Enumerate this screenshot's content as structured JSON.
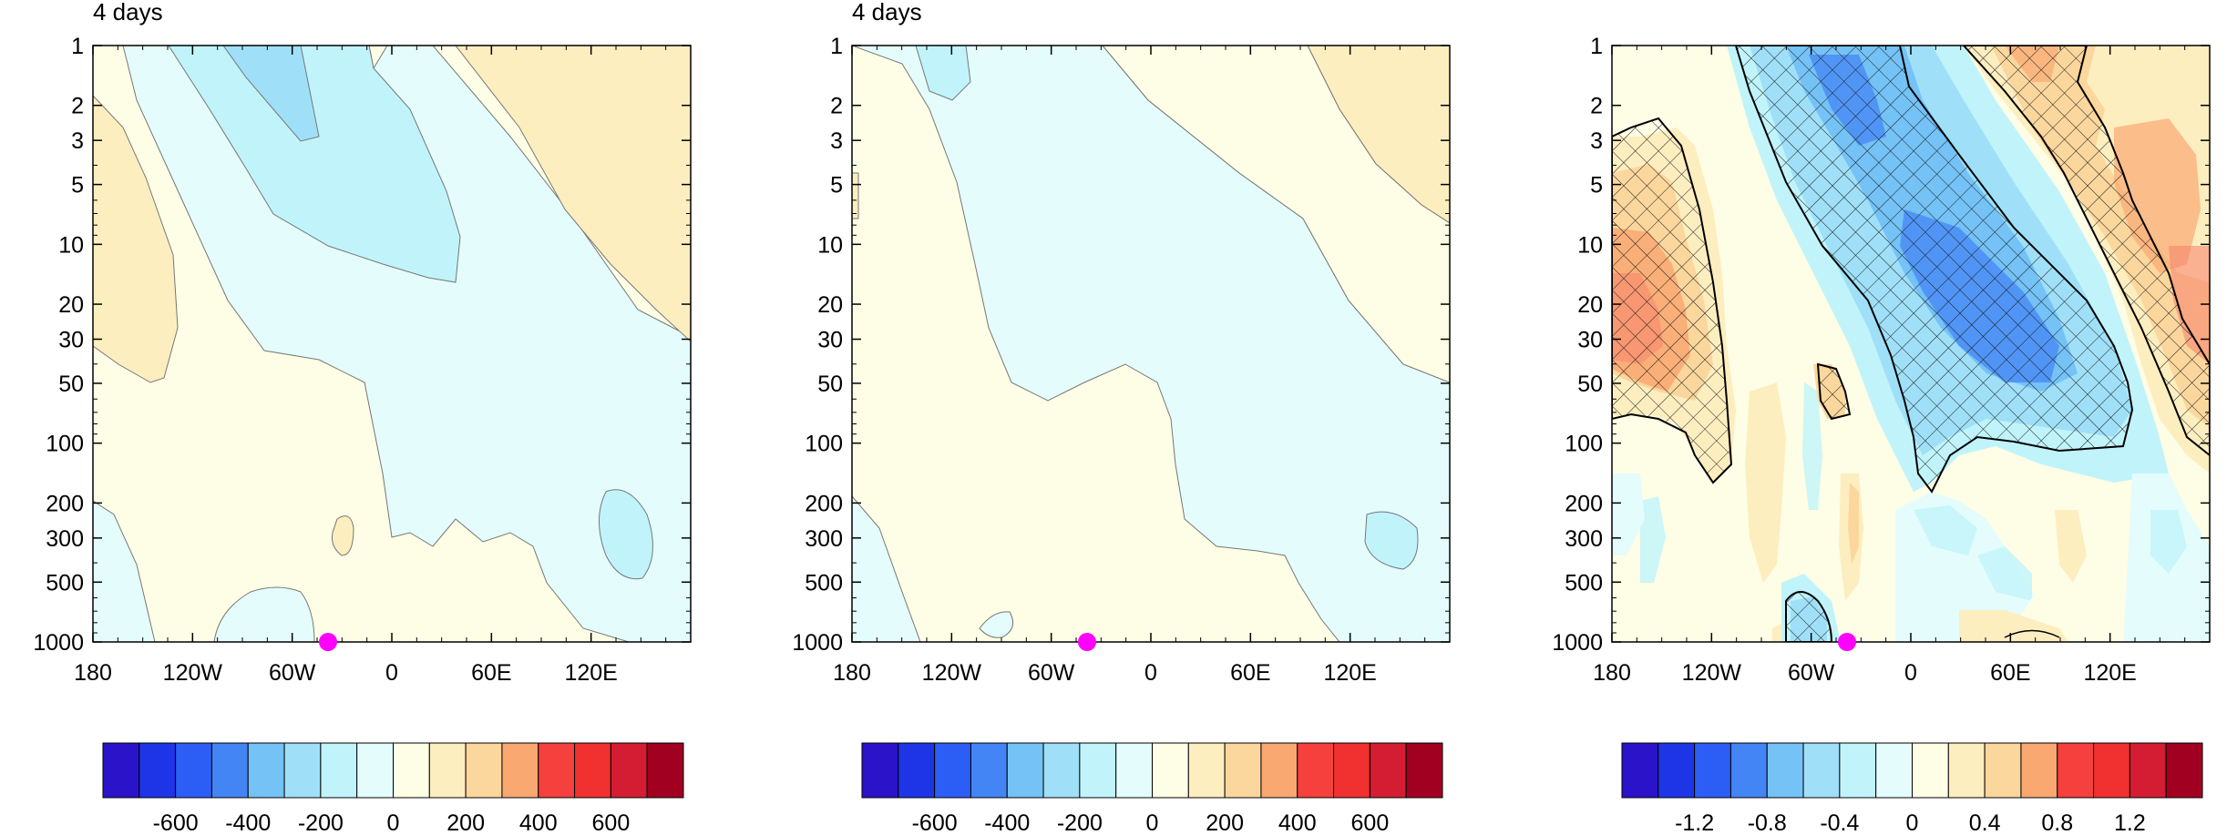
{
  "chart_data": [
    {
      "type": "heatmap",
      "title_left": "4 days",
      "x_ticks": [
        "180",
        "120W",
        "60W",
        "0",
        "60E",
        "120E"
      ],
      "y_ticks": [
        "1",
        "2",
        "3",
        "5",
        "10",
        "20",
        "30",
        "50",
        "100",
        "200",
        "300",
        "500",
        "1000"
      ],
      "y_scale": "log",
      "y_direction": "reversed",
      "contour_levels": [
        -700,
        -600,
        -500,
        -400,
        -300,
        -200,
        -100,
        0,
        100,
        200,
        300,
        400,
        500,
        600,
        700
      ],
      "colorbar_labels": [
        "-600",
        "-400",
        "-200",
        "0",
        "200",
        "400",
        "600"
      ],
      "colorbar_colors": [
        "#2a13c9",
        "#1d35e6",
        "#2c5ef5",
        "#4485f5",
        "#74c2f6",
        "#9fe0f8",
        "#c0f4fa",
        "#e4fcfc",
        "#fefde6",
        "#fdeec0",
        "#fbd79d",
        "#f9a872",
        "#f5403d",
        "#f0312f",
        "#d41d32",
        "#a10021"
      ],
      "marker": {
        "label": "station",
        "lon": "~36W",
        "p": 1000,
        "color": "#ff00ff"
      }
    },
    {
      "type": "heatmap",
      "title_left": "4 days",
      "x_ticks": [
        "180",
        "120W",
        "60W",
        "0",
        "60E",
        "120E"
      ],
      "y_ticks": [
        "1",
        "2",
        "3",
        "5",
        "10",
        "20",
        "30",
        "50",
        "100",
        "200",
        "300",
        "500",
        "1000"
      ],
      "y_scale": "log",
      "y_direction": "reversed",
      "contour_levels": [
        -700,
        -600,
        -500,
        -400,
        -300,
        -200,
        -100,
        0,
        100,
        200,
        300,
        400,
        500,
        600,
        700
      ],
      "colorbar_labels": [
        "-600",
        "-400",
        "-200",
        "0",
        "200",
        "400",
        "600"
      ],
      "colorbar_colors": [
        "#2a13c9",
        "#1d35e6",
        "#2c5ef5",
        "#4485f5",
        "#74c2f6",
        "#9fe0f8",
        "#c0f4fa",
        "#e4fcfc",
        "#fefde6",
        "#fdeec0",
        "#fbd79d",
        "#f9a872",
        "#f5403d",
        "#f0312f",
        "#d41d32",
        "#a10021"
      ],
      "marker": {
        "label": "station",
        "lon": "~36W",
        "p": 1000,
        "color": "#ff00ff"
      }
    },
    {
      "type": "heatmap",
      "title_left": "",
      "x_ticks": [
        "180",
        "120W",
        "60W",
        "0",
        "60E",
        "120E"
      ],
      "y_ticks": [
        "1",
        "2",
        "3",
        "5",
        "10",
        "20",
        "30",
        "50",
        "100",
        "200",
        "300",
        "500",
        "1000"
      ],
      "y_scale": "log",
      "y_direction": "reversed",
      "contour_levels": [
        -1.4,
        -1.2,
        -1.0,
        -0.8,
        -0.6,
        -0.4,
        -0.2,
        0,
        0.2,
        0.4,
        0.6,
        0.8,
        1.0,
        1.2,
        1.4
      ],
      "colorbar_labels": [
        "-1.2",
        "-0.8",
        "-0.4",
        "0",
        "0.4",
        "0.8",
        "1.2"
      ],
      "colorbar_colors": [
        "#2a13c9",
        "#1d35e6",
        "#2c5ef5",
        "#4485f5",
        "#74c2f6",
        "#9fe0f8",
        "#c0f4fa",
        "#e4fcfc",
        "#fefde6",
        "#fdeec0",
        "#fbd79d",
        "#f9a872",
        "#f5403d",
        "#f0312f",
        "#d41d32",
        "#a10021"
      ],
      "hatching": "significant regions cross-hatched",
      "marker": {
        "label": "station",
        "lon": "~36W",
        "p": 1000,
        "color": "#ff00ff"
      }
    }
  ]
}
